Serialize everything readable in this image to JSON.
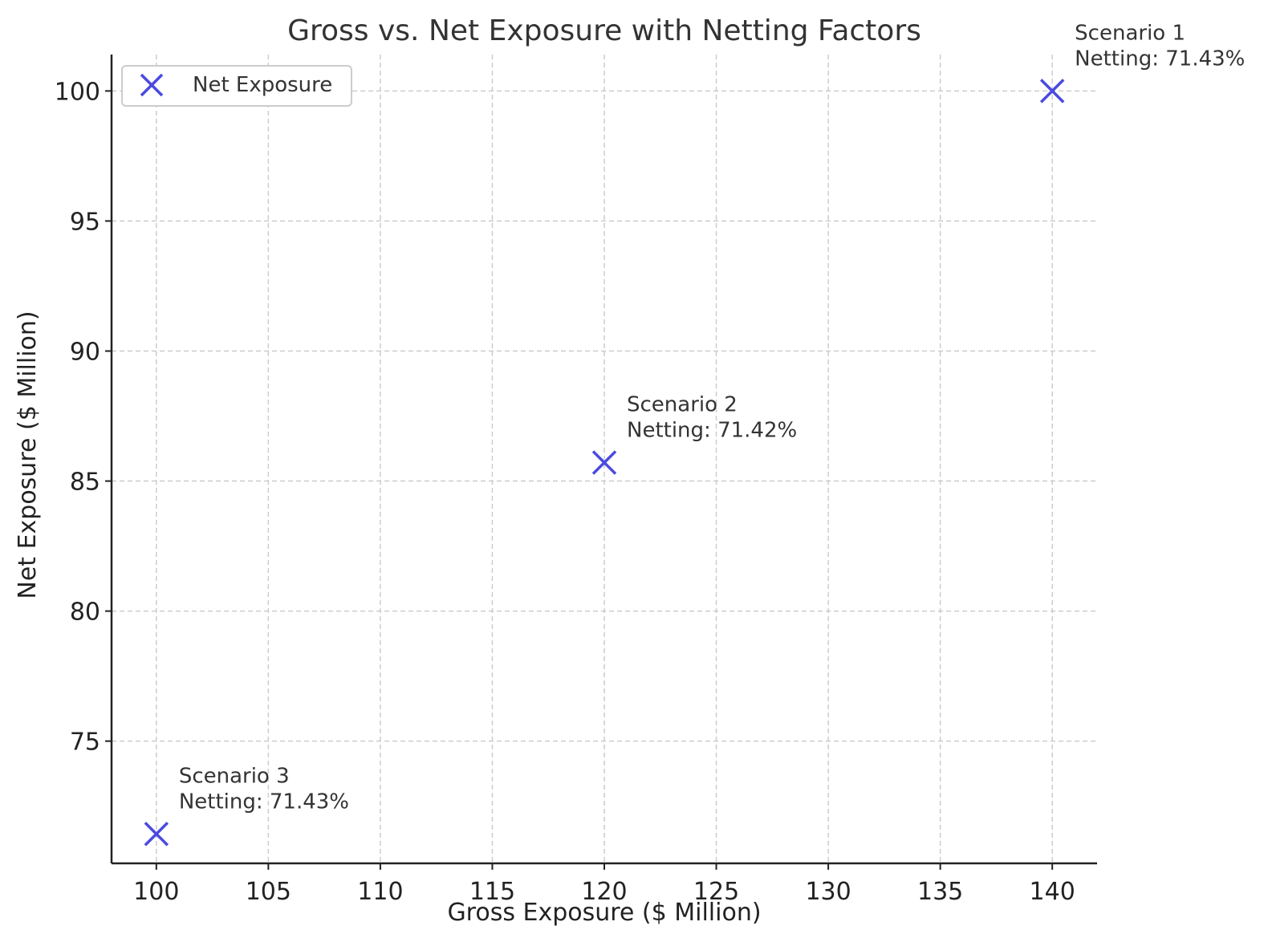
{
  "chart_data": {
    "type": "scatter",
    "title": "Gross vs. Net Exposure with Netting Factors",
    "xlabel": "Gross Exposure ($ Million)",
    "ylabel": "Net Exposure ($ Million)",
    "xlim": [
      98,
      142
    ],
    "ylim": [
      70.3,
      101.4
    ],
    "xticks": [
      100,
      105,
      110,
      115,
      120,
      125,
      130,
      135,
      140
    ],
    "yticks": [
      75,
      80,
      85,
      90,
      95,
      100
    ],
    "grid": true,
    "legend": {
      "placement": "top-left",
      "entries": [
        "Net Exposure"
      ]
    },
    "series": [
      {
        "name": "Net Exposure",
        "marker": "x",
        "color": "#4a4ae0",
        "points": [
          {
            "x": 140,
            "y": 100,
            "label_line1": "Scenario 1",
            "label_line2": "Netting: 71.43%"
          },
          {
            "x": 120,
            "y": 85.71,
            "label_line1": "Scenario 2",
            "label_line2": "Netting: 71.42%"
          },
          {
            "x": 100,
            "y": 71.43,
            "label_line1": "Scenario 3",
            "label_line2": "Netting: 71.43%"
          }
        ]
      }
    ]
  }
}
